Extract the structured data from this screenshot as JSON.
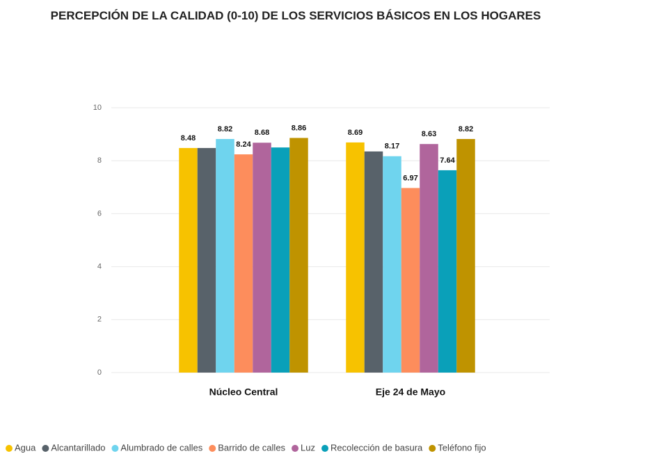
{
  "chart_data": {
    "type": "bar",
    "title": "PERCEPCIÓN DE LA CALIDAD (0-10) DE LOS SERVICIOS BÁSICOS EN LOS HOGARES",
    "categories": [
      "Núcleo Central",
      "Eje 24 de Mayo"
    ],
    "series": [
      {
        "name": "Agua",
        "color": "#f7c200",
        "values": [
          8.48,
          8.69
        ],
        "value_labels": [
          "8.48",
          "8.69"
        ]
      },
      {
        "name": "Alcantarillado",
        "color": "#58626a",
        "values": [
          8.48,
          8.35
        ],
        "value_labels": [
          null,
          null
        ]
      },
      {
        "name": "Alumbrado de calles",
        "color": "#6fd4ee",
        "values": [
          8.82,
          8.17
        ],
        "value_labels": [
          "8.82",
          "8.17"
        ]
      },
      {
        "name": "Barrido de calles",
        "color": "#fd8d5c",
        "values": [
          8.24,
          6.97
        ],
        "value_labels": [
          "8.24",
          "6.97"
        ]
      },
      {
        "name": "Luz",
        "color": "#b0659c",
        "values": [
          8.68,
          8.63
        ],
        "value_labels": [
          "8.68",
          "8.63"
        ]
      },
      {
        "name": "Recolección de basura",
        "color": "#0aa0b9",
        "values": [
          8.5,
          7.64
        ],
        "value_labels": [
          null,
          "7.64"
        ]
      },
      {
        "name": "Teléfono fijo",
        "color": "#bf9300",
        "values": [
          8.86,
          8.82
        ],
        "value_labels": [
          "8.86",
          "8.82"
        ]
      }
    ],
    "ylim": [
      0,
      10
    ],
    "yticks": [
      0,
      2,
      4,
      6,
      8,
      10
    ],
    "grid": true,
    "legend": "bottom"
  }
}
